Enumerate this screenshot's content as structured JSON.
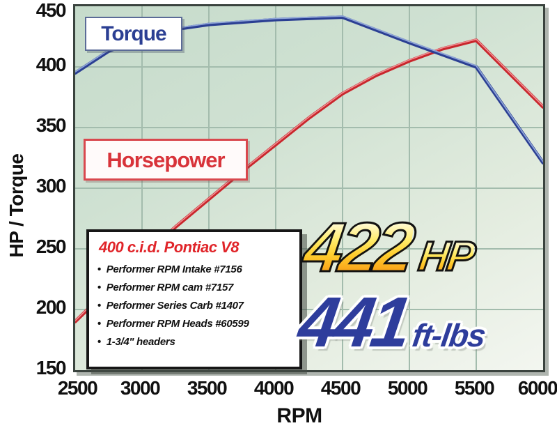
{
  "legend": {
    "torque_label": "Torque",
    "horsepower_label": "Horsepower"
  },
  "specs_box": {
    "title": "400 c.i.d. Pontiac V8",
    "items": [
      "Performer RPM Intake #7156",
      "Performer RPM cam #7157",
      "Performer Series Carb #1407",
      "Performer RPM Heads #60599",
      "1-3/4\" headers"
    ]
  },
  "results": {
    "hp_value": "422",
    "hp_unit": "HP",
    "torque_value": "441",
    "torque_unit": "ft-lbs"
  },
  "colors": {
    "torque_line": "#2b3f93",
    "torque_line_highlight": "#8fa5d8",
    "horsepower_line": "#c9262c",
    "horsepower_line_highlight": "#ef9094",
    "grid_line": "#a3bcad",
    "plot_border": "#3a433e",
    "specs_title_red": "#e02429",
    "big_hp_gold": "#ffc222",
    "big_torque_navy": "#2e3d9c"
  },
  "chart_data": {
    "type": "line",
    "title": "Edelbrock dyno chart - 400 c.i.d. Pontiac V8",
    "xlabel": "RPM",
    "ylabel": "HP / Torque",
    "xlim": [
      2500,
      6000
    ],
    "ylim": [
      150,
      450
    ],
    "x_ticks": [
      2500,
      3000,
      3500,
      4000,
      4500,
      5000,
      5500,
      6000
    ],
    "y_ticks": [
      450,
      400,
      350,
      300,
      250,
      200,
      150
    ],
    "grid": true,
    "legend_position": "labels-on-chart",
    "peaks": {
      "horsepower": "422 HP",
      "torque": "441 ft-lbs"
    },
    "series": [
      {
        "name": "Torque",
        "unit": "ft-lbs",
        "values_at_ticks": [
          395,
          424,
          435,
          439,
          441,
          420,
          400,
          321
        ],
        "points": [
          [
            2500,
            395
          ],
          [
            2750,
            413
          ],
          [
            3000,
            424
          ],
          [
            3250,
            431
          ],
          [
            3500,
            435
          ],
          [
            3750,
            437
          ],
          [
            4000,
            439
          ],
          [
            4250,
            440
          ],
          [
            4500,
            441
          ],
          [
            5000,
            420
          ],
          [
            5500,
            400
          ],
          [
            6000,
            321
          ]
        ]
      },
      {
        "name": "Horsepower",
        "unit": "HP",
        "values_at_ticks": [
          190,
          243,
          291,
          336,
          378,
          405,
          422,
          367
        ],
        "points": [
          [
            2500,
            190
          ],
          [
            2750,
            217
          ],
          [
            3000,
            243
          ],
          [
            3250,
            268
          ],
          [
            3500,
            291
          ],
          [
            3750,
            314
          ],
          [
            4000,
            336
          ],
          [
            4250,
            358
          ],
          [
            4500,
            378
          ],
          [
            4750,
            393
          ],
          [
            5000,
            405
          ],
          [
            5250,
            415
          ],
          [
            5500,
            422
          ],
          [
            6000,
            367
          ]
        ]
      }
    ]
  }
}
